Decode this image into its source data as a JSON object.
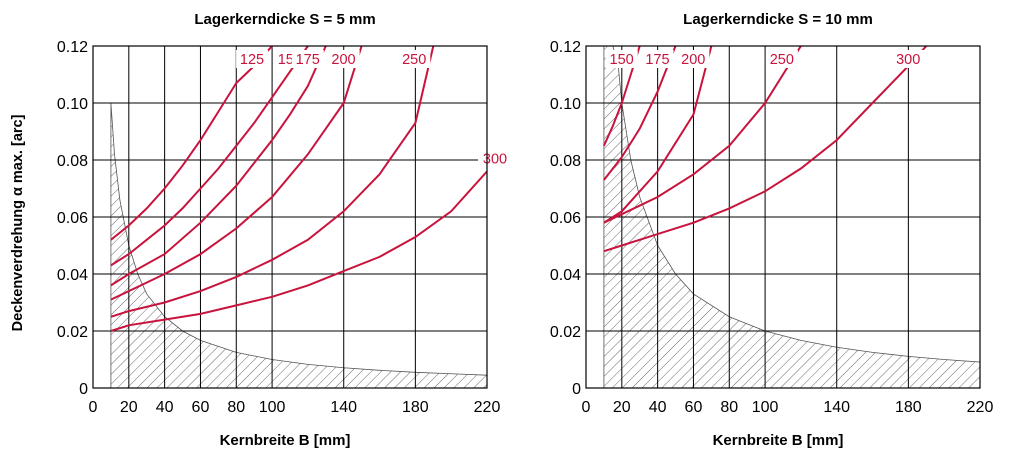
{
  "chart_data": [
    {
      "type": "line",
      "title": "Lagerkerndicke S = 5 mm",
      "xlabel": "Kernbreite B [mm]",
      "ylabel": "Deckenverdrehung α max. [arc]",
      "xlim": [
        0,
        220
      ],
      "ylim": [
        0,
        0.12
      ],
      "xticks": [
        "0",
        "20",
        "40",
        "60",
        "80",
        "100",
        "140",
        "180",
        "220"
      ],
      "xtick_values": [
        0,
        20,
        40,
        60,
        80,
        100,
        140,
        180,
        220
      ],
      "yticks": [
        "0",
        "0.02",
        "0.04",
        "0.06",
        "0.08",
        "0.10",
        "0.12"
      ],
      "ytick_values": [
        0,
        0.02,
        0.04,
        0.06,
        0.08,
        0.1,
        0.12
      ],
      "grid": true,
      "hatched_region": {
        "x": [
          10,
          12,
          15,
          20,
          25,
          30,
          40,
          50,
          60,
          80,
          100,
          120,
          140,
          160,
          180,
          200,
          220
        ],
        "y": [
          0.1,
          0.082,
          0.066,
          0.05,
          0.04,
          0.033,
          0.025,
          0.02,
          0.0167,
          0.0125,
          0.01,
          0.0083,
          0.0071,
          0.0062,
          0.0055,
          0.005,
          0.0045
        ]
      },
      "series": [
        {
          "name": "125",
          "x": [
            10,
            20,
            30,
            40,
            50,
            60,
            70,
            80,
            90,
            100
          ],
          "y": [
            0.052,
            0.057,
            0.063,
            0.07,
            0.078,
            0.087,
            0.097,
            0.107,
            0.113,
            0.12
          ]
        },
        {
          "name": "150",
          "x": [
            10,
            20,
            30,
            40,
            50,
            60,
            70,
            80,
            90,
            100,
            110,
            120
          ],
          "y": [
            0.043,
            0.047,
            0.052,
            0.057,
            0.063,
            0.07,
            0.077,
            0.085,
            0.093,
            0.102,
            0.111,
            0.12
          ]
        },
        {
          "name": "175",
          "x": [
            10,
            20,
            40,
            60,
            80,
            100,
            110,
            120,
            130
          ],
          "y": [
            0.036,
            0.04,
            0.047,
            0.058,
            0.071,
            0.087,
            0.096,
            0.106,
            0.12
          ]
        },
        {
          "name": "200",
          "x": [
            10,
            20,
            40,
            60,
            80,
            100,
            120,
            140,
            150
          ],
          "y": [
            0.031,
            0.034,
            0.04,
            0.047,
            0.056,
            0.067,
            0.082,
            0.1,
            0.12
          ]
        },
        {
          "name": "250",
          "x": [
            10,
            20,
            40,
            60,
            80,
            100,
            120,
            140,
            160,
            180,
            190
          ],
          "y": [
            0.025,
            0.027,
            0.03,
            0.034,
            0.039,
            0.045,
            0.052,
            0.062,
            0.075,
            0.093,
            0.12
          ]
        },
        {
          "name": "300",
          "x": [
            10,
            20,
            40,
            60,
            80,
            100,
            120,
            140,
            160,
            180,
            200,
            220
          ],
          "y": [
            0.02,
            0.022,
            0.024,
            0.026,
            0.029,
            0.032,
            0.036,
            0.041,
            0.046,
            0.053,
            0.062,
            0.076
          ]
        }
      ]
    },
    {
      "type": "line",
      "title": "Lagerkerndicke S = 10 mm",
      "xlabel": "Kernbreite B [mm]",
      "ylabel": "",
      "xlim": [
        0,
        220
      ],
      "ylim": [
        0,
        0.12
      ],
      "xticks": [
        "0",
        "20",
        "40",
        "60",
        "80",
        "100",
        "140",
        "180",
        "220"
      ],
      "xtick_values": [
        0,
        20,
        40,
        60,
        80,
        100,
        140,
        180,
        220
      ],
      "yticks": [
        "0",
        "0.02",
        "0.04",
        "0.06",
        "0.08",
        "0.10",
        "0.12"
      ],
      "ytick_values": [
        0,
        0.02,
        0.04,
        0.06,
        0.08,
        0.1,
        0.12
      ],
      "grid": true,
      "hatched_region": {
        "x": [
          10,
          15,
          18,
          20,
          25,
          30,
          40,
          50,
          60,
          80,
          100,
          120,
          140,
          160,
          180,
          200,
          220
        ],
        "y": [
          0.12,
          0.12,
          0.113,
          0.1,
          0.08,
          0.067,
          0.05,
          0.04,
          0.033,
          0.025,
          0.02,
          0.0167,
          0.0143,
          0.0125,
          0.0111,
          0.01,
          0.0091
        ]
      },
      "series": [
        {
          "name": "150",
          "x": [
            10,
            15,
            20,
            25,
            30
          ],
          "y": [
            0.085,
            0.092,
            0.1,
            0.11,
            0.12
          ]
        },
        {
          "name": "175",
          "x": [
            10,
            20,
            30,
            40,
            50
          ],
          "y": [
            0.073,
            0.081,
            0.091,
            0.104,
            0.12
          ]
        },
        {
          "name": "200",
          "x": [
            10,
            20,
            40,
            60,
            70
          ],
          "y": [
            0.058,
            0.062,
            0.076,
            0.096,
            0.12
          ]
        },
        {
          "name": "250",
          "x": [
            10,
            20,
            40,
            60,
            80,
            100,
            120
          ],
          "y": [
            0.058,
            0.061,
            0.067,
            0.075,
            0.085,
            0.1,
            0.12
          ]
        },
        {
          "name": "300",
          "x": [
            10,
            20,
            40,
            60,
            80,
            100,
            120,
            140,
            160,
            180,
            190
          ],
          "y": [
            0.048,
            0.05,
            0.054,
            0.058,
            0.063,
            0.069,
            0.077,
            0.087,
            0.1,
            0.113,
            0.12
          ]
        }
      ]
    }
  ]
}
